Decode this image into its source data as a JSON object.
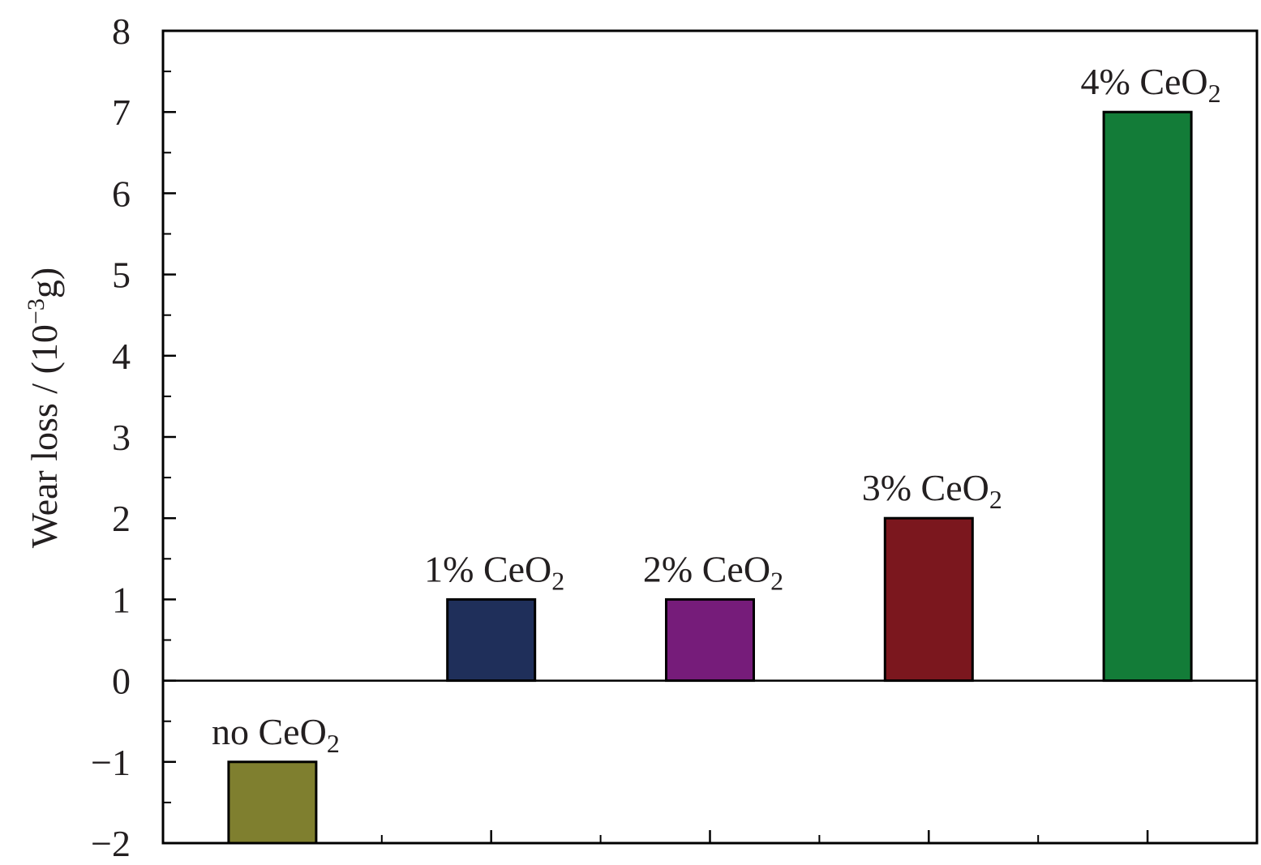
{
  "chart_data": {
    "type": "bar",
    "title": "",
    "xlabel": "",
    "ylabel": "Wear loss / (10",
    "ylabel_sup": "−3",
    "ylabel_tail": "g)",
    "ylim": [
      -2,
      8
    ],
    "yticks": [
      -2,
      -1,
      0,
      1,
      2,
      3,
      4,
      5,
      6,
      7,
      8
    ],
    "ytick_labels": [
      "−2",
      "−1",
      "0",
      "1",
      "2",
      "3",
      "4",
      "5",
      "6",
      "7",
      "8"
    ],
    "grid": false,
    "legend": "none",
    "zero_line": true,
    "bars": [
      {
        "label": "no CeO",
        "label_sub": "2",
        "value": -1,
        "color": "#7f7f2f"
      },
      {
        "label": "1% CeO",
        "label_sub": "2",
        "value": 1,
        "color": "#1f2f5a"
      },
      {
        "label": "2% CeO",
        "label_sub": "2",
        "value": 1,
        "color": "#761c7a"
      },
      {
        "label": "3% CeO",
        "label_sub": "2",
        "value": 2,
        "color": "#7b171e"
      },
      {
        "label": "4% CeO",
        "label_sub": "2",
        "value": 7,
        "color": "#137c38"
      }
    ]
  }
}
